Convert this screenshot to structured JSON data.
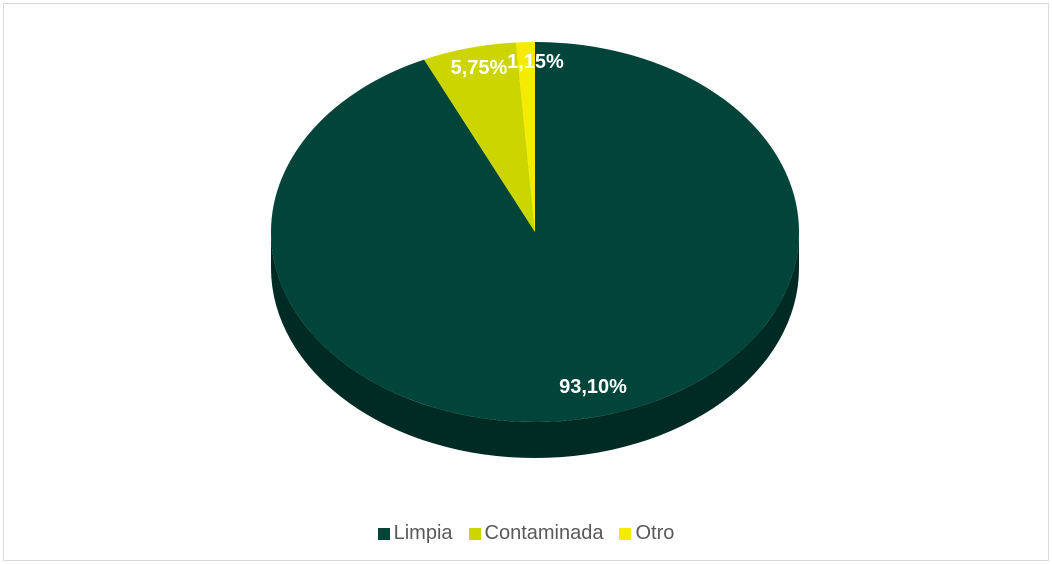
{
  "chart_data": {
    "type": "pie",
    "title": "",
    "categories": [
      "Limpia",
      "Contaminada",
      "Otro"
    ],
    "values": [
      93.1,
      5.75,
      1.15
    ],
    "labels": [
      "93,10%",
      "5,75%",
      "1,15%"
    ],
    "colors": [
      "#00443a",
      "#cdd500",
      "#f5ea00"
    ],
    "side_colors": [
      "#002b24",
      "#8f9600",
      "#aca400"
    ],
    "style": "3d",
    "legend_position": "bottom"
  },
  "legend": {
    "items": [
      {
        "label": "Limpia",
        "color": "#00443a"
      },
      {
        "label": "Contaminada",
        "color": "#cdd500"
      },
      {
        "label": "Otro",
        "color": "#f5ea00"
      }
    ]
  }
}
